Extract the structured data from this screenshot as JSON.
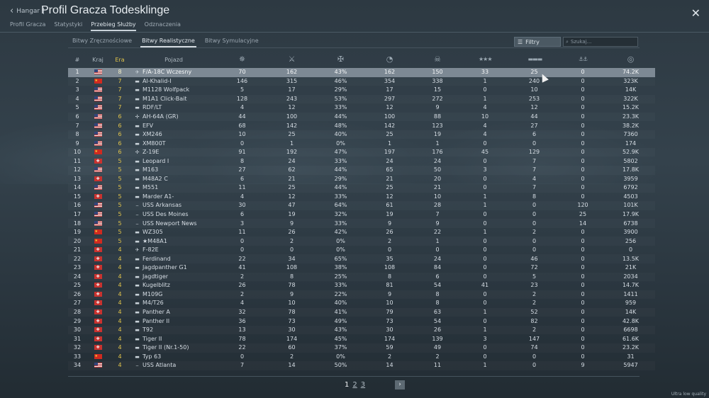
{
  "header": {
    "back_label": "Hangar",
    "title": "Profil Gracza Todesklinge",
    "tabs": [
      "Profil Gracza",
      "Statystyki",
      "Przebieg Służby",
      "Odznaczenia"
    ],
    "active_tab": "Przebieg Służby"
  },
  "mode_tabs": [
    "Bitwy Zręcznościowe",
    "Bitwy Realistyczne",
    "Bitwy Symulacyjne"
  ],
  "active_mode": "Bitwy Realistyczne",
  "filter_label": "Filtry",
  "search_placeholder": "Szukaj...",
  "table": {
    "headers": {
      "num": "#",
      "country": "Kraj",
      "era": "Era",
      "vehicle": "Pojazd"
    },
    "stat_icons": [
      "battles-icon",
      "missions-icon",
      "victories-icon",
      "respawns-icon",
      "deaths-icon",
      "air-kills-icon",
      "ground-kills-icon",
      "naval-kills-icon",
      "research-points-icon"
    ],
    "rows": [
      {
        "n": "1",
        "flag": "us",
        "era": "8",
        "type": "✈",
        "name": "F/A-18C Wczesny",
        "c": [
          "70",
          "162",
          "43%",
          "162",
          "150",
          "33",
          "25",
          "0",
          "74.2K"
        ]
      },
      {
        "n": "2",
        "flag": "cn",
        "era": "7",
        "type": "▬",
        "name": "Al-Khalid-I",
        "c": [
          "146",
          "315",
          "46%",
          "354",
          "338",
          "1",
          "240",
          "0",
          "323K"
        ]
      },
      {
        "n": "3",
        "flag": "us",
        "era": "7",
        "type": "▬",
        "name": "M1128 Wolfpack",
        "c": [
          "5",
          "17",
          "29%",
          "17",
          "15",
          "0",
          "10",
          "0",
          "14K"
        ]
      },
      {
        "n": "4",
        "flag": "us",
        "era": "7",
        "type": "▬",
        "name": "M1A1 Click-Bait",
        "c": [
          "128",
          "243",
          "53%",
          "297",
          "272",
          "1",
          "253",
          "0",
          "322K"
        ]
      },
      {
        "n": "5",
        "flag": "us",
        "era": "7",
        "type": "▬",
        "name": "RDF/LT",
        "c": [
          "4",
          "12",
          "33%",
          "12",
          "9",
          "4",
          "12",
          "0",
          "15.2K"
        ]
      },
      {
        "n": "6",
        "flag": "us",
        "era": "6",
        "type": "✢",
        "name": "AH-64A (GR)",
        "c": [
          "44",
          "100",
          "44%",
          "100",
          "88",
          "10",
          "44",
          "0",
          "23.3K"
        ]
      },
      {
        "n": "7",
        "flag": "us",
        "era": "6",
        "type": "▬",
        "name": "EFV",
        "c": [
          "68",
          "142",
          "48%",
          "142",
          "123",
          "4",
          "27",
          "0",
          "38.2K"
        ]
      },
      {
        "n": "8",
        "flag": "us",
        "era": "6",
        "type": "▬",
        "name": "XM246",
        "c": [
          "10",
          "25",
          "40%",
          "25",
          "19",
          "4",
          "6",
          "0",
          "7360"
        ]
      },
      {
        "n": "9",
        "flag": "us",
        "era": "6",
        "type": "▬",
        "name": "XM800T",
        "c": [
          "0",
          "1",
          "0%",
          "1",
          "1",
          "0",
          "0",
          "0",
          "174"
        ]
      },
      {
        "n": "10",
        "flag": "cn",
        "era": "6",
        "type": "✢",
        "name": "Z-19E",
        "c": [
          "91",
          "192",
          "47%",
          "197",
          "176",
          "45",
          "129",
          "0",
          "52.9K"
        ]
      },
      {
        "n": "11",
        "flag": "de",
        "era": "5",
        "type": "▬",
        "name": "Leopard I",
        "c": [
          "8",
          "24",
          "33%",
          "24",
          "24",
          "0",
          "7",
          "0",
          "5802"
        ]
      },
      {
        "n": "12",
        "flag": "us",
        "era": "5",
        "type": "▬",
        "name": "M163",
        "c": [
          "27",
          "62",
          "44%",
          "65",
          "50",
          "3",
          "7",
          "0",
          "17.8K"
        ]
      },
      {
        "n": "13",
        "flag": "de",
        "era": "5",
        "type": "▬",
        "name": "M48A2 C",
        "c": [
          "6",
          "21",
          "29%",
          "21",
          "20",
          "0",
          "4",
          "0",
          "3959"
        ]
      },
      {
        "n": "14",
        "flag": "us",
        "era": "5",
        "type": "▬",
        "name": "M551",
        "c": [
          "11",
          "25",
          "44%",
          "25",
          "21",
          "0",
          "7",
          "0",
          "6792"
        ]
      },
      {
        "n": "15",
        "flag": "de",
        "era": "5",
        "type": "▬",
        "name": "Marder A1-",
        "c": [
          "4",
          "12",
          "33%",
          "12",
          "10",
          "1",
          "8",
          "0",
          "4503"
        ]
      },
      {
        "n": "16",
        "flag": "us",
        "era": "5",
        "type": "⎯",
        "name": "USS Arkansas",
        "c": [
          "30",
          "47",
          "64%",
          "61",
          "28",
          "1",
          "0",
          "120",
          "101K"
        ]
      },
      {
        "n": "17",
        "flag": "us",
        "era": "5",
        "type": "⎯",
        "name": "USS Des Moines",
        "c": [
          "6",
          "19",
          "32%",
          "19",
          "7",
          "0",
          "0",
          "25",
          "17.9K"
        ]
      },
      {
        "n": "18",
        "flag": "us",
        "era": "5",
        "type": "⎯",
        "name": "USS Newport News",
        "c": [
          "3",
          "9",
          "33%",
          "9",
          "9",
          "0",
          "0",
          "14",
          "6738"
        ]
      },
      {
        "n": "19",
        "flag": "cn",
        "era": "5",
        "type": "▬",
        "name": "WZ305",
        "c": [
          "11",
          "26",
          "42%",
          "26",
          "22",
          "1",
          "2",
          "0",
          "3900"
        ]
      },
      {
        "n": "20",
        "flag": "cn",
        "era": "5",
        "type": "▬",
        "name": "★M48A1",
        "c": [
          "0",
          "2",
          "0%",
          "2",
          "1",
          "0",
          "0",
          "0",
          "256"
        ]
      },
      {
        "n": "21",
        "flag": "de",
        "era": "4",
        "type": "✈",
        "name": "F-82E",
        "c": [
          "0",
          "0",
          "0%",
          "0",
          "0",
          "0",
          "0",
          "0",
          "0"
        ]
      },
      {
        "n": "22",
        "flag": "de",
        "era": "4",
        "type": "▬",
        "name": "Ferdinand",
        "c": [
          "22",
          "34",
          "65%",
          "35",
          "24",
          "0",
          "46",
          "0",
          "13.5K"
        ]
      },
      {
        "n": "23",
        "flag": "de",
        "era": "4",
        "type": "▬",
        "name": "Jagdpanther G1",
        "c": [
          "41",
          "108",
          "38%",
          "108",
          "84",
          "0",
          "72",
          "0",
          "21K"
        ]
      },
      {
        "n": "24",
        "flag": "de",
        "era": "4",
        "type": "▬",
        "name": "Jagdtiger",
        "c": [
          "2",
          "8",
          "25%",
          "8",
          "6",
          "0",
          "5",
          "0",
          "2034"
        ]
      },
      {
        "n": "25",
        "flag": "de",
        "era": "4",
        "type": "▬",
        "name": "Kugelblitz",
        "c": [
          "26",
          "78",
          "33%",
          "81",
          "54",
          "41",
          "23",
          "0",
          "14.7K"
        ]
      },
      {
        "n": "26",
        "flag": "de",
        "era": "4",
        "type": "▬",
        "name": "M109G",
        "c": [
          "2",
          "9",
          "22%",
          "9",
          "8",
          "0",
          "2",
          "0",
          "1411"
        ]
      },
      {
        "n": "27",
        "flag": "de",
        "era": "4",
        "type": "▬",
        "name": "M4/T26",
        "c": [
          "4",
          "10",
          "40%",
          "10",
          "8",
          "0",
          "2",
          "0",
          "959"
        ]
      },
      {
        "n": "28",
        "flag": "de",
        "era": "4",
        "type": "▬",
        "name": "Panther A",
        "c": [
          "32",
          "78",
          "41%",
          "79",
          "63",
          "1",
          "52",
          "0",
          "14K"
        ]
      },
      {
        "n": "29",
        "flag": "de",
        "era": "4",
        "type": "▬",
        "name": "Panther II",
        "c": [
          "36",
          "73",
          "49%",
          "73",
          "54",
          "0",
          "82",
          "0",
          "42.8K"
        ]
      },
      {
        "n": "30",
        "flag": "de",
        "era": "4",
        "type": "▬",
        "name": "T92",
        "c": [
          "13",
          "30",
          "43%",
          "30",
          "26",
          "1",
          "2",
          "0",
          "6698"
        ]
      },
      {
        "n": "31",
        "flag": "de",
        "era": "4",
        "type": "▬",
        "name": "Tiger II",
        "c": [
          "78",
          "174",
          "45%",
          "174",
          "139",
          "3",
          "147",
          "0",
          "61.6K"
        ]
      },
      {
        "n": "32",
        "flag": "de",
        "era": "4",
        "type": "▬",
        "name": "Tiger II (Nr.1-50)",
        "c": [
          "22",
          "60",
          "37%",
          "59",
          "49",
          "0",
          "74",
          "0",
          "23.2K"
        ]
      },
      {
        "n": "33",
        "flag": "cn",
        "era": "4",
        "type": "▬",
        "name": "Typ 63",
        "c": [
          "0",
          "2",
          "0%",
          "2",
          "2",
          "0",
          "0",
          "0",
          "31"
        ]
      },
      {
        "n": "34",
        "flag": "us",
        "era": "4",
        "type": "⎯",
        "name": "USS Atlanta",
        "c": [
          "7",
          "14",
          "50%",
          "14",
          "11",
          "1",
          "0",
          "9",
          "5947"
        ]
      }
    ]
  },
  "pagination": {
    "pages": [
      "1",
      "2",
      "3"
    ],
    "current": "1",
    "next_icon": "next-page-icon"
  },
  "footer_note": "Ultra low quality",
  "colors": {
    "era": "#e0c34a",
    "selected_row": "#7d8994",
    "accent": "#d4dbe0"
  }
}
